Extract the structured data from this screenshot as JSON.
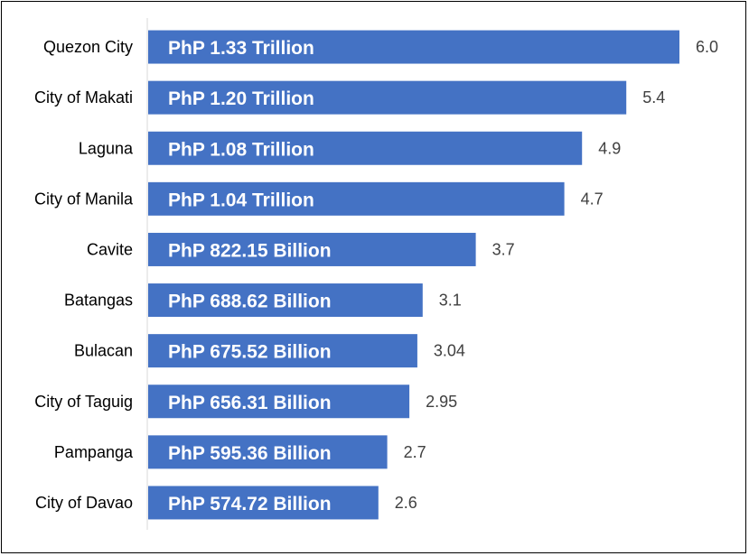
{
  "chart_data": {
    "type": "bar",
    "orientation": "horizontal",
    "categories": [
      "Quezon City",
      "City of Makati",
      "Laguna",
      "City of Manila",
      "Cavite",
      "Batangas",
      "Bulacan",
      "City of Taguig",
      "Pampanga",
      "City of Davao"
    ],
    "values": [
      6.0,
      5.4,
      4.9,
      4.7,
      3.7,
      3.1,
      3.04,
      2.95,
      2.7,
      2.6
    ],
    "value_labels": [
      "6.0",
      "5.4",
      "4.9",
      "4.7",
      "3.7",
      "3.1",
      "3.04",
      "2.95",
      "2.7",
      "2.6"
    ],
    "bar_labels": [
      "PhP 1.33 Trillion",
      "PhP 1.20 Trillion",
      "PhP 1.08 Trillion",
      "PhP 1.04 Trillion",
      "PhP 822.15 Billion",
      "PhP 688.62 Billion",
      "PhP 675.52 Billion",
      "PhP 656.31 Billion",
      "PhP 595.36 Billion",
      "PhP 574.72 Billion"
    ],
    "title": "",
    "xlabel": "",
    "ylabel": "",
    "xlim": [
      0,
      6.0
    ],
    "grid": false,
    "legend": "none",
    "bar_color": "#4472C4"
  }
}
